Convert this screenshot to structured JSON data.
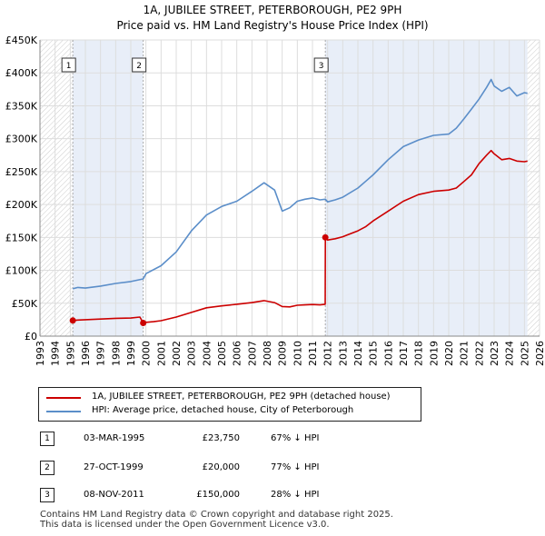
{
  "header": {
    "title_line1": "1A, JUBILEE STREET, PETERBOROUGH, PE2 9PH",
    "title_line2": "Price paid vs. HM Land Registry's House Price Index (HPI)"
  },
  "chart_data": {
    "type": "line",
    "x_range": [
      1993,
      2026
    ],
    "ylim": [
      0,
      450000
    ],
    "y_ticks": [
      0,
      50000,
      100000,
      150000,
      200000,
      250000,
      300000,
      350000,
      400000,
      450000
    ],
    "y_tick_labels": [
      "£0",
      "£50K",
      "£100K",
      "£150K",
      "£200K",
      "£250K",
      "£300K",
      "£350K",
      "£400K",
      "£450K"
    ],
    "x_ticks": [
      1993,
      1994,
      1995,
      1996,
      1997,
      1998,
      1999,
      2000,
      2001,
      2002,
      2003,
      2004,
      2005,
      2006,
      2007,
      2008,
      2009,
      2010,
      2011,
      2012,
      2013,
      2014,
      2015,
      2016,
      2017,
      2018,
      2019,
      2020,
      2021,
      2022,
      2023,
      2024,
      2025,
      2026
    ],
    "x_tick_labels": [
      "1993",
      "1994",
      "1995",
      "1996",
      "1997",
      "1998",
      "1999",
      "2000",
      "2001",
      "2002",
      "2003",
      "2004",
      "2005",
      "2006",
      "2007",
      "2008",
      "2009",
      "2010",
      "2011",
      "2012",
      "2013",
      "2014",
      "2015",
      "2016",
      "2017",
      "2018",
      "2019",
      "2020",
      "2021",
      "2022",
      "2023",
      "2024",
      "2025",
      "2026"
    ],
    "colors": {
      "property": "#cc0000",
      "hpi": "#5b8ec9",
      "shade": "#e8eef8",
      "marker_line": "#aaaaaa",
      "grid": "#dddddd"
    },
    "shaded_ranges": [
      [
        1995.17,
        1999.82
      ],
      [
        2011.85,
        2025.2
      ]
    ],
    "hatch_ranges": [
      [
        1993,
        1995.17
      ],
      [
        2025.2,
        2026
      ]
    ],
    "series": [
      {
        "name": "1A, JUBILEE STREET, PETERBOROUGH, PE2 9PH (detached house)",
        "key": "property",
        "x": [
          1995.17,
          1995.5,
          1996,
          1997,
          1998,
          1999,
          1999.6,
          1999.82,
          2000,
          2000.5,
          2001,
          2002,
          2003,
          2004,
          2005,
          2006,
          2007,
          2007.8,
          2008.5,
          2009,
          2009.5,
          2010,
          2010.5,
          2011,
          2011.5,
          2011.84,
          2011.85,
          2012,
          2012.5,
          2013,
          2014,
          2014.5,
          2015,
          2016,
          2017,
          2018,
          2019,
          2020,
          2020.5,
          2021,
          2021.5,
          2022,
          2022.5,
          2022.8,
          2023,
          2023.5,
          2024,
          2024.5,
          2025,
          2025.2
        ],
        "y": [
          23750,
          24500,
          25000,
          26000,
          27000,
          27500,
          29000,
          20000,
          21000,
          22000,
          23500,
          29000,
          36000,
          43000,
          46000,
          48500,
          51000,
          54000,
          51000,
          45000,
          44500,
          47000,
          47500,
          48000,
          47500,
          48500,
          150000,
          146000,
          148000,
          151000,
          160000,
          166000,
          175000,
          190000,
          205000,
          215000,
          220000,
          222000,
          225000,
          235000,
          245000,
          262000,
          275000,
          282000,
          277000,
          268000,
          270000,
          266000,
          265000,
          266000
        ]
      },
      {
        "name": "HPI: Average price, detached house, City of Peterborough",
        "key": "hpi",
        "x": [
          1995.17,
          1995.5,
          1996,
          1997,
          1998,
          1999,
          1999.82,
          2000,
          2001,
          2002,
          2003,
          2004,
          2005,
          2006,
          2007,
          2007.8,
          2008.5,
          2009,
          2009.5,
          2010,
          2010.5,
          2011,
          2011.5,
          2011.85,
          2012,
          2012.5,
          2013,
          2014,
          2014.5,
          2015,
          2016,
          2017,
          2018,
          2019,
          2020,
          2020.5,
          2021,
          2021.5,
          2022,
          2022.5,
          2022.8,
          2023,
          2023.5,
          2024,
          2024.5,
          2025,
          2025.2
        ],
        "y": [
          72000,
          74000,
          73000,
          76000,
          80000,
          83000,
          87000,
          95000,
          107000,
          128000,
          160000,
          184000,
          197000,
          205000,
          220000,
          233000,
          222000,
          190000,
          195000,
          205000,
          208000,
          210000,
          207000,
          208000,
          204000,
          207000,
          211000,
          225000,
          235000,
          245000,
          268000,
          288000,
          298000,
          305000,
          307000,
          316000,
          330000,
          345000,
          360000,
          378000,
          390000,
          380000,
          372000,
          378000,
          365000,
          370000,
          369000
        ]
      }
    ],
    "markers": [
      {
        "label": "1",
        "x": 1995.17,
        "y": 23750
      },
      {
        "label": "2",
        "x": 1999.82,
        "y": 20000
      },
      {
        "label": "3",
        "x": 2011.85,
        "y": 150000
      }
    ]
  },
  "legend": {
    "items": [
      {
        "label": "1A, JUBILEE STREET, PETERBOROUGH, PE2 9PH (detached house)",
        "color": "#cc0000"
      },
      {
        "label": "HPI: Average price, detached house, City of Peterborough",
        "color": "#5b8ec9"
      }
    ]
  },
  "transactions": [
    {
      "num": "1",
      "date": "03-MAR-1995",
      "price": "£23,750",
      "hpi": "67% ↓ HPI"
    },
    {
      "num": "2",
      "date": "27-OCT-1999",
      "price": "£20,000",
      "hpi": "77% ↓ HPI"
    },
    {
      "num": "3",
      "date": "08-NOV-2011",
      "price": "£150,000",
      "hpi": "28% ↓ HPI"
    }
  ],
  "footer": {
    "line1": "Contains HM Land Registry data © Crown copyright and database right 2025.",
    "line2": "This data is licensed under the Open Government Licence v3.0."
  }
}
